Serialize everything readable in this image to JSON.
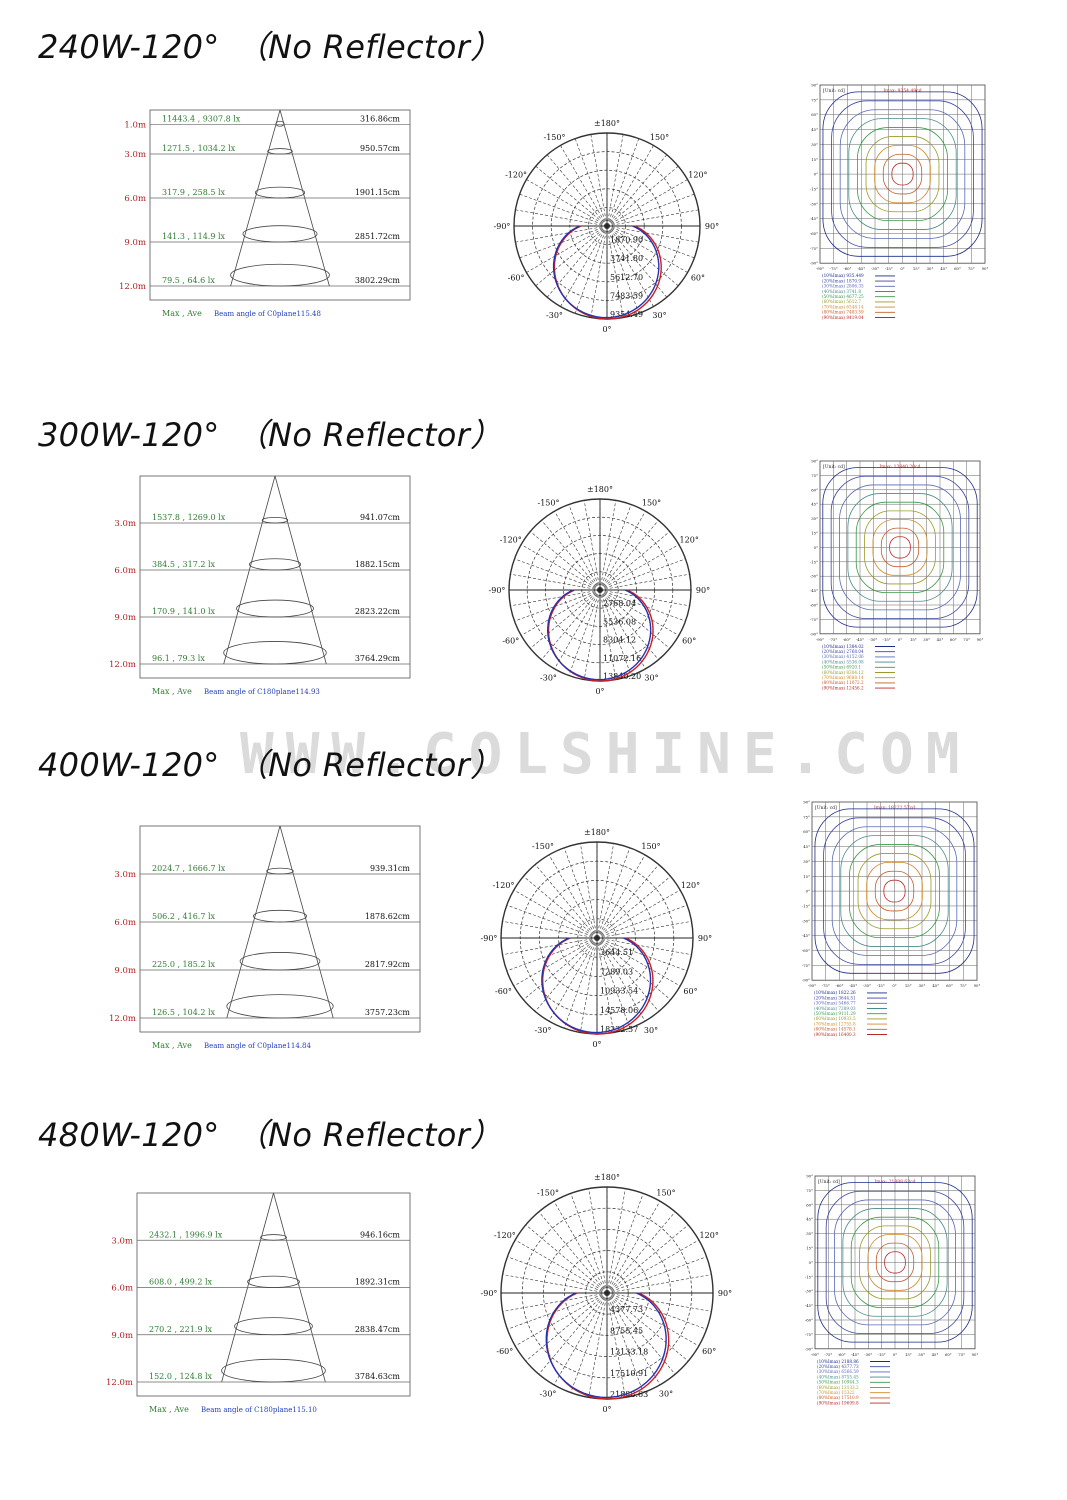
{
  "watermark": "WWW.COLSHINE.COM",
  "common": {
    "maxave_label": "Max , Ave",
    "polar_angles": [
      "±180°",
      "-150°",
      "150°",
      "-120°",
      "120°",
      "-90°",
      "90°",
      "-60°",
      "60°",
      "-30°",
      "30°",
      "0°"
    ],
    "iso_unit": "[Unit: cd]",
    "iso_x_ticks": [
      "-90°",
      "-75°",
      "-60°",
      "-45°",
      "-30°",
      "-15°",
      "0°",
      "15°",
      "30°",
      "45°",
      "60°",
      "75°",
      "90°"
    ],
    "iso_y_ticks": [
      "90°",
      "75°",
      "60°",
      "45°",
      "30°",
      "15°",
      "0°",
      "-15°",
      "-30°",
      "-45°",
      "-60°",
      "-75°",
      "-90°"
    ],
    "iso_colors": [
      "#1a2a88",
      "#3a46a0",
      "#5a6ab8",
      "#4a8a8a",
      "#3a9a4a",
      "#9a9a2a",
      "#d08a2a",
      "#c85a2a",
      "#b82a2a"
    ]
  },
  "sections": [
    {
      "title": "240W-120°　（No Reflector）",
      "rows": [
        {
          "dist": "1.0m",
          "lux": "11443.4 , 9307.8 lx",
          "diam": "316.86cm"
        },
        {
          "dist": "3.0m",
          "lux": "1271.5 , 1034.2 lx",
          "diam": "950.57cm"
        },
        {
          "dist": "6.0m",
          "lux": "317.9 , 258.5 lx",
          "diam": "1901.15cm"
        },
        {
          "dist": "9.0m",
          "lux": "141.3 , 114.9 lx",
          "diam": "2851.72cm"
        },
        {
          "dist": "12.0m",
          "lux": "79.5 , 64.6 lx",
          "diam": "3802.29cm"
        }
      ],
      "beam": "Beam angle of C0plane115.48",
      "polar_values": [
        "1870.90",
        "3741.80",
        "5612.70",
        "7483.59",
        "9354.49"
      ],
      "iso_max": "Imax: 9354.49cd",
      "iso_legend": [
        "(10%Imax) 935.449",
        "(20%Imax) 1870.9",
        "(30%Imax) 2806.35",
        "(40%Imax) 3741.8",
        "(50%Imax) 4677.25",
        "(60%Imax) 5612.7",
        "(70%Imax) 6548.14",
        "(80%Imax) 7483.59",
        "(90%Imax) 8419.04"
      ]
    },
    {
      "title": "300W-120°　（No Reflector）",
      "rows": [
        {
          "dist": "3.0m",
          "lux": "1537.8 , 1269.0 lx",
          "diam": "941.07cm"
        },
        {
          "dist": "6.0m",
          "lux": "384.5 , 317.2 lx",
          "diam": "1882.15cm"
        },
        {
          "dist": "9.0m",
          "lux": "170.9 , 141.0 lx",
          "diam": "2823.22cm"
        },
        {
          "dist": "12.0m",
          "lux": "96.1 , 79.3 lx",
          "diam": "3764.29cm"
        }
      ],
      "beam": "Beam angle of C180plane114.93",
      "polar_values": [
        "2768.04",
        "5536.08",
        "8304.12",
        "11072.16",
        "13840.20"
      ],
      "iso_max": "Imax: 13840.20cd",
      "iso_legend": [
        "(10%Imax) 1384.02",
        "(20%Imax) 2768.04",
        "(30%Imax) 4152.06",
        "(40%Imax) 5536.08",
        "(50%Imax) 6920.1",
        "(60%Imax) 8304.12",
        "(70%Imax) 9688.14",
        "(80%Imax) 11072.2",
        "(90%Imax) 12456.2"
      ]
    },
    {
      "title": "400W-120°　（No Reflector）",
      "rows": [
        {
          "dist": "3.0m",
          "lux": "2024.7 , 1666.7 lx",
          "diam": "939.31cm"
        },
        {
          "dist": "6.0m",
          "lux": "506.2 , 416.7 lx",
          "diam": "1878.62cm"
        },
        {
          "dist": "9.0m",
          "lux": "225.0 , 185.2 lx",
          "diam": "2817.92cm"
        },
        {
          "dist": "12.0m",
          "lux": "126.5 , 104.2 lx",
          "diam": "3757.23cm"
        }
      ],
      "beam": "Beam angle of C0plane114.84",
      "polar_values": [
        "3644.51",
        "7289.03",
        "10933.54",
        "14578.06",
        "18222.57"
      ],
      "iso_max": "Imax: 18222.57cd",
      "iso_legend": [
        "(10%Imax) 1822.26",
        "(20%Imax) 3644.51",
        "(30%Imax) 5466.77",
        "(40%Imax) 7289.03",
        "(50%Imax) 9111.29",
        "(60%Imax) 10933.5",
        "(70%Imax) 12755.8",
        "(80%Imax) 14578.1",
        "(90%Imax) 16400.3"
      ]
    },
    {
      "title": "480W-120°　（No Reflector）",
      "rows": [
        {
          "dist": "3.0m",
          "lux": "2432.1 , 1996.9 lx",
          "diam": "946.16cm"
        },
        {
          "dist": "6.0m",
          "lux": "608.0 , 499.2 lx",
          "diam": "1892.31cm"
        },
        {
          "dist": "9.0m",
          "lux": "270.2 , 221.9 lx",
          "diam": "2838.47cm"
        },
        {
          "dist": "12.0m",
          "lux": "152.0 , 124.8 lx",
          "diam": "3784.63cm"
        }
      ],
      "beam": "Beam angle of C180plane115.10",
      "polar_values": [
        "4377.73",
        "8755.45",
        "13133.18",
        "17510.91",
        "21888.63"
      ],
      "iso_max": "Imax: 21888.63cd",
      "iso_legend": [
        "(10%Imax) 2188.86",
        "(20%Imax) 4377.73",
        "(30%Imax) 6566.59",
        "(40%Imax) 8755.45",
        "(50%Imax) 10944.3",
        "(60%Imax) 13133.2",
        "(70%Imax) 15322",
        "(80%Imax) 17510.9",
        "(90%Imax) 19699.8"
      ]
    }
  ]
}
